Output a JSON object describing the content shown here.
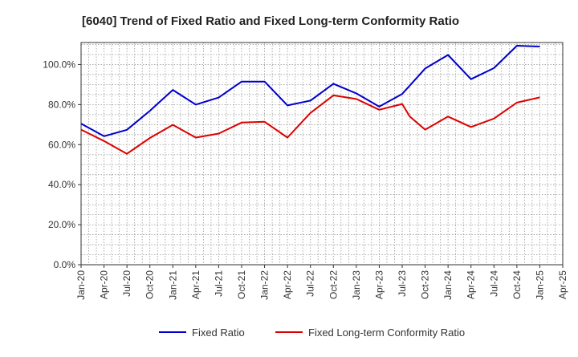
{
  "chart_data": {
    "type": "line",
    "title": "[6040]  Trend of Fixed Ratio and Fixed Long-term Conformity Ratio",
    "xlabel": "",
    "ylabel": "",
    "x_tick_labels": [
      "Jan-20",
      "Apr-20",
      "Jul-20",
      "Oct-20",
      "Jan-21",
      "Apr-21",
      "Jul-21",
      "Oct-21",
      "Jan-22",
      "Apr-22",
      "Jul-22",
      "Oct-22",
      "Jan-23",
      "Apr-23",
      "Jul-23",
      "Oct-23",
      "Jan-24",
      "Apr-24",
      "Jul-24",
      "Oct-24",
      "Jan-25",
      "Apr-25"
    ],
    "y_ticks": [
      0,
      20,
      40,
      60,
      80,
      100
    ],
    "y_tick_labels": [
      "0.0%",
      "20.0%",
      "40.0%",
      "60.0%",
      "80.0%",
      "100.0%"
    ],
    "ylim": [
      0,
      111
    ],
    "xlim": [
      "Jan-20",
      "Apr-25"
    ],
    "grid": true,
    "legend_position": "bottom",
    "series": [
      {
        "name": "Fixed Ratio",
        "color": "#0000cc",
        "x": [
          "Jan-20",
          "Apr-20",
          "Jul-20",
          "Oct-20",
          "Jan-21",
          "Apr-21",
          "Jul-21",
          "Oct-21",
          "Jan-22",
          "Apr-22",
          "Jul-22",
          "Oct-22",
          "Jan-23",
          "Apr-23",
          "Jul-23",
          "Oct-23",
          "Jan-24",
          "Apr-24",
          "Jul-24",
          "Oct-24",
          "Jan-25"
        ],
        "values": [
          70.5,
          64.2,
          67.4,
          76.9,
          87.3,
          80.0,
          83.5,
          91.5,
          91.5,
          79.6,
          82.0,
          90.4,
          85.6,
          79.0,
          85.3,
          98.0,
          104.8,
          92.7,
          98.2,
          109.4,
          109.0
        ]
      },
      {
        "name": "Fixed Long-term Conformity Ratio",
        "color": "#dd0000",
        "x": [
          "Jan-20",
          "Apr-20",
          "Jul-20",
          "Oct-20",
          "Jan-21",
          "Apr-21",
          "Jul-21",
          "Oct-21",
          "Jan-22",
          "Apr-22",
          "Jul-22",
          "Oct-22",
          "Jan-23",
          "Apr-23",
          "Jul-23",
          "Aug-23",
          "Oct-23",
          "Jan-24",
          "Apr-24",
          "Jul-24",
          "Oct-24",
          "Jan-25"
        ],
        "values": [
          67.5,
          61.8,
          55.4,
          63.3,
          69.9,
          63.5,
          65.5,
          71.0,
          71.4,
          63.5,
          75.8,
          84.6,
          82.8,
          77.4,
          80.3,
          74.0,
          67.5,
          74.0,
          68.8,
          73.0,
          81.0,
          83.6
        ]
      }
    ]
  }
}
